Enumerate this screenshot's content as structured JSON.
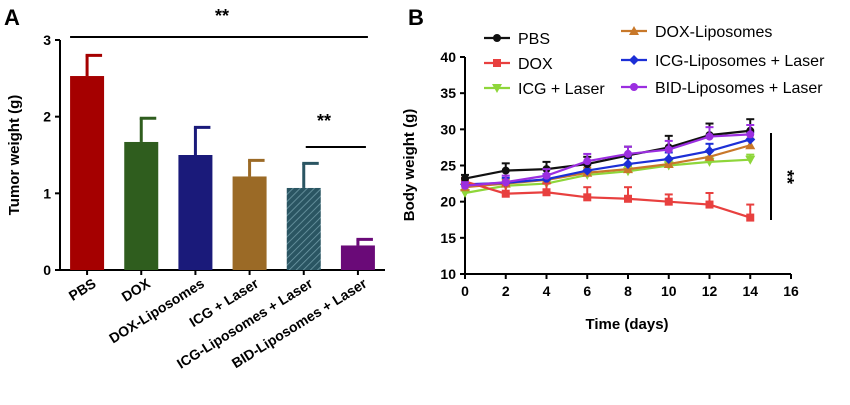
{
  "chart_data": [
    {
      "panel": "A",
      "type": "bar",
      "ylabel": "Tumor weight (g)",
      "ylim": [
        0,
        3
      ],
      "yticks": [
        "0",
        "1",
        "2",
        "3"
      ],
      "categories": [
        "PBS",
        "DOX",
        "DOX-Liposomes",
        "ICG + Laser",
        "ICG-Liposomes + Laser",
        "BID-Liposomes + Laser"
      ],
      "values": [
        2.53,
        1.67,
        1.5,
        1.22,
        1.07,
        0.32
      ],
      "errors": [
        0.27,
        0.31,
        0.36,
        0.21,
        0.32,
        0.08
      ],
      "colors": [
        "#a50000",
        "#2f5d1e",
        "#1a1a7a",
        "#9b6a26",
        "#2a5562",
        "#6a0a78"
      ],
      "significance": [
        {
          "label": "**",
          "from": "PBS",
          "to": "BID-Liposomes + Laser"
        },
        {
          "label": "**",
          "from": "ICG-Liposomes + Laser",
          "to": "BID-Liposomes + Laser"
        }
      ]
    },
    {
      "panel": "B",
      "type": "line",
      "xlabel": "Time (days)",
      "ylabel": "Body weight (g)",
      "xlim": [
        0,
        16
      ],
      "ylim": [
        10,
        40
      ],
      "xticks": [
        "0",
        "2",
        "4",
        "6",
        "8",
        "10",
        "12",
        "14",
        "16"
      ],
      "yticks": [
        "10",
        "15",
        "20",
        "25",
        "30",
        "35",
        "40"
      ],
      "x": [
        0,
        2,
        4,
        6,
        8,
        10,
        12,
        14
      ],
      "series": [
        {
          "name": "PBS",
          "color": "#111111",
          "marker": "circle",
          "values": [
            23.2,
            24.3,
            24.5,
            25.2,
            26.4,
            27.5,
            29.2,
            29.8
          ],
          "errors": [
            0.5,
            1.0,
            1.0,
            1.0,
            1.2,
            1.6,
            1.6,
            1.6
          ]
        },
        {
          "name": "DOX",
          "color": "#e8403f",
          "marker": "square",
          "values": [
            22.8,
            21.1,
            21.3,
            20.6,
            20.4,
            20.0,
            19.6,
            17.8
          ],
          "errors": [
            0.5,
            1.2,
            1.2,
            1.4,
            1.6,
            1.0,
            1.6,
            1.8
          ]
        },
        {
          "name": "ICG + Laser",
          "color": "#8ed63a",
          "marker": "triangle-down",
          "values": [
            21.2,
            22.2,
            22.5,
            23.7,
            24.2,
            25.0,
            25.5,
            25.8
          ],
          "errors": [
            0.4,
            0.6,
            0.6,
            0.7,
            0.7,
            0.7,
            0.7,
            0.7
          ]
        },
        {
          "name": "DOX-Liposomes",
          "color": "#c8782a",
          "marker": "triangle-up",
          "values": [
            22.0,
            22.5,
            23.0,
            24.0,
            24.5,
            25.2,
            26.2,
            27.8
          ],
          "errors": [
            0.4,
            0.6,
            0.6,
            0.7,
            0.7,
            0.7,
            0.8,
            0.9
          ]
        },
        {
          "name": "ICG-Liposomes + Laser",
          "color": "#1c2fd6",
          "marker": "diamond",
          "values": [
            22.4,
            22.6,
            23.1,
            24.3,
            25.2,
            25.9,
            27.0,
            28.6
          ],
          "errors": [
            0.4,
            0.7,
            0.7,
            0.8,
            0.8,
            0.9,
            1.0,
            1.0
          ]
        },
        {
          "name": "BID-Liposomes + Laser",
          "color": "#9b2ee0",
          "marker": "circle",
          "values": [
            22.2,
            22.7,
            23.6,
            25.6,
            26.6,
            27.2,
            29.0,
            29.3
          ],
          "errors": [
            0.5,
            0.9,
            0.9,
            1.0,
            1.0,
            1.2,
            1.3,
            1.3
          ]
        }
      ],
      "significance": [
        {
          "label": "**",
          "from": "PBS",
          "to": "DOX"
        }
      ],
      "legend": "top"
    }
  ]
}
